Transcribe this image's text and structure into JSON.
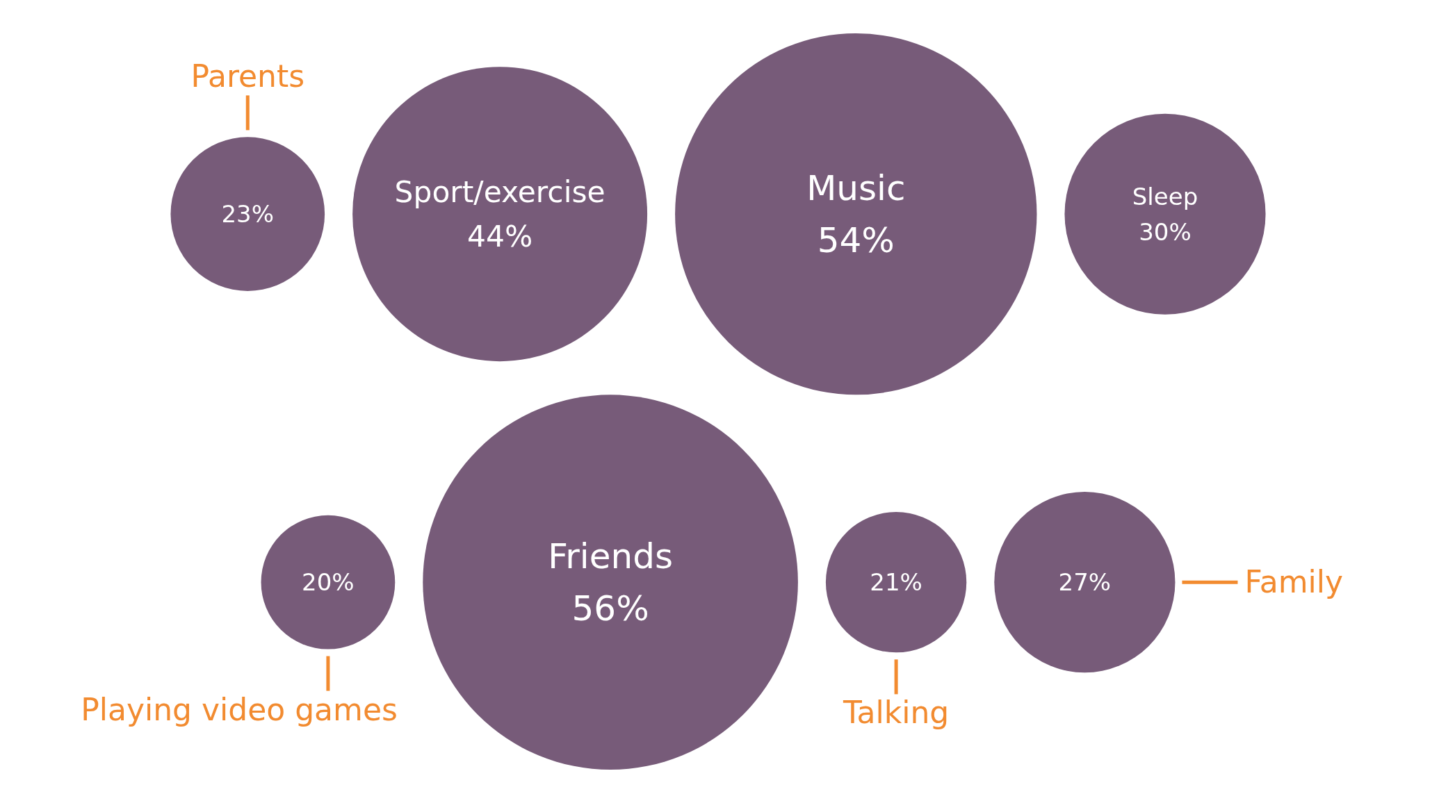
{
  "chart_data": {
    "type": "other",
    "categories": [
      "Parents",
      "Sport/exercise",
      "Music",
      "Sleep",
      "Playing video games",
      "Friends",
      "Talking",
      "Family"
    ],
    "values": [
      23,
      44,
      54,
      30,
      20,
      56,
      21,
      27
    ],
    "value_labels": [
      "23%",
      "44%",
      "54%",
      "30%",
      "20%",
      "56%",
      "21%",
      "27%"
    ],
    "color": "#775b79"
  }
}
